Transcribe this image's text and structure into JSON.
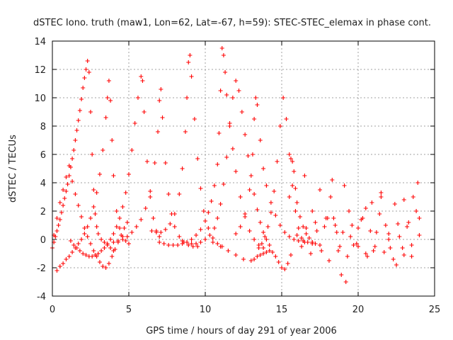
{
  "chart_data": {
    "type": "scatter",
    "title": "dSTEC Iono. truth (maw1, Lon=62, Lat=-67, h=59): STEC-STEC_elemax in phase cont.",
    "xlabel": "GPS time / hours of day 291 of year 2006",
    "ylabel": "dSTEC  / TECUs",
    "xlim": [
      0,
      25
    ],
    "ylim": [
      -4,
      14
    ],
    "x_ticks": [
      0,
      5,
      10,
      15,
      20,
      25
    ],
    "y_ticks": [
      -4,
      -2,
      0,
      2,
      4,
      6,
      8,
      10,
      12,
      14
    ],
    "x_tick_labels": [
      "0",
      "5",
      "10",
      "15",
      "20",
      "25"
    ],
    "y_tick_labels": [
      "-4",
      "-2",
      "0",
      "2",
      "4",
      "6",
      "8",
      "10",
      "12",
      "14"
    ],
    "grid": true,
    "marker": "plus",
    "color": "#ff0000",
    "series": [
      {
        "x": [
          0.0,
          0.1,
          0.2,
          0.3,
          0.4,
          0.5,
          0.6,
          0.7,
          0.8,
          0.9,
          1.0,
          1.1,
          1.2,
          1.3,
          1.4,
          1.5,
          1.6,
          1.7,
          1.8,
          1.9,
          2.0,
          2.1,
          2.2,
          2.3,
          2.4,
          2.5,
          2.6,
          2.7,
          2.8,
          2.9,
          3.0,
          3.2,
          3.4,
          3.6,
          3.8,
          4.0
        ],
        "y": [
          -0.6,
          -0.2,
          0.2,
          0.6,
          1.0,
          1.4,
          1.9,
          2.4,
          2.9,
          3.4,
          3.9,
          4.5,
          5.1,
          5.7,
          6.3,
          7.0,
          7.7,
          8.4,
          9.1,
          9.9,
          10.7,
          11.4,
          12.0,
          12.6,
          11.8,
          9.0,
          6.0,
          3.5,
          1.8,
          0.9,
          0.4,
          0.0,
          -0.2,
          -0.4,
          -0.6,
          -0.8
        ]
      },
      {
        "x": [
          0.3,
          0.5,
          0.7,
          0.9,
          1.1,
          1.3,
          1.5,
          1.7,
          1.9,
          2.1,
          2.3,
          2.5,
          2.7,
          2.9,
          3.1,
          3.3,
          3.5,
          3.6,
          3.7,
          3.8,
          3.9,
          4.0,
          4.2,
          4.4,
          4.6,
          4.8,
          5.0
        ],
        "y": [
          -2.2,
          -1.9,
          -1.7,
          -1.4,
          -1.2,
          -0.9,
          -0.6,
          -0.3,
          0.0,
          0.4,
          0.9,
          1.5,
          2.3,
          3.3,
          4.6,
          6.3,
          8.6,
          10.0,
          11.2,
          9.8,
          7.0,
          4.5,
          2.0,
          0.8,
          0.2,
          -0.1,
          -0.3
        ]
      },
      {
        "x": [
          1.2,
          1.4,
          1.6,
          1.8,
          2.0,
          2.2,
          2.4,
          2.6,
          2.8,
          3.0,
          3.2,
          3.4,
          3.6,
          3.8,
          4.0,
          4.2,
          4.4,
          4.6,
          4.8,
          5.0,
          5.2,
          5.4,
          5.6,
          5.8,
          5.9,
          6.0,
          6.2,
          6.4,
          6.6,
          6.8,
          7.0
        ],
        "y": [
          -0.1,
          -0.4,
          -0.6,
          -0.8,
          -1.0,
          -1.1,
          -1.2,
          -1.2,
          -1.1,
          -1.0,
          -0.8,
          -0.6,
          -0.3,
          0.0,
          0.4,
          0.9,
          1.5,
          2.3,
          3.3,
          4.6,
          6.3,
          8.2,
          10.0,
          11.5,
          11.2,
          9.0,
          5.5,
          3.0,
          1.5,
          0.6,
          0.2
        ]
      },
      {
        "x": [
          4.0,
          4.3,
          4.6,
          4.9,
          5.2,
          5.5,
          5.8,
          6.1,
          6.4,
          6.7,
          6.9,
          7.0,
          7.1,
          7.2,
          7.4,
          7.6,
          7.8,
          8.0,
          8.3,
          8.6,
          8.9,
          9.2,
          9.5
        ],
        "y": [
          -0.2,
          -0.1,
          0.0,
          0.2,
          0.5,
          0.9,
          1.4,
          2.2,
          3.4,
          5.4,
          7.6,
          9.8,
          10.6,
          8.6,
          5.4,
          3.2,
          1.8,
          0.9,
          0.2,
          -0.2,
          -0.4,
          -0.5,
          -0.5
        ]
      },
      {
        "x": [
          6.5,
          6.8,
          7.1,
          7.4,
          7.7,
          8.0,
          8.3,
          8.5,
          8.7,
          8.8,
          8.9,
          9.0,
          9.1,
          9.3,
          9.5,
          9.7,
          9.9,
          10.2,
          10.5,
          10.8,
          11.1
        ],
        "y": [
          0.6,
          0.5,
          0.5,
          0.7,
          1.1,
          1.8,
          3.2,
          5.0,
          7.6,
          10.0,
          12.5,
          13.0,
          11.5,
          8.5,
          5.7,
          3.6,
          2.0,
          0.8,
          0.1,
          -0.3,
          -0.5
        ]
      },
      {
        "x": [
          7.0,
          7.3,
          7.6,
          7.9,
          8.2,
          8.5,
          8.8,
          9.1,
          9.4,
          9.7,
          10.0,
          10.2,
          10.4,
          10.6,
          10.8,
          10.9,
          11.0,
          11.1,
          11.2,
          11.3,
          11.4,
          11.6,
          11.8,
          12.0,
          12.3,
          12.6,
          12.9,
          13.2,
          13.5,
          13.8
        ],
        "y": [
          -0.2,
          -0.3,
          -0.4,
          -0.4,
          -0.4,
          -0.3,
          -0.2,
          0.0,
          0.3,
          0.7,
          1.3,
          1.9,
          2.7,
          3.8,
          5.3,
          7.5,
          10.5,
          13.5,
          13.0,
          11.8,
          10.2,
          8.2,
          6.4,
          4.8,
          3.0,
          1.6,
          0.6,
          0.0,
          -0.4,
          -0.6
        ]
      },
      {
        "x": [
          8.5,
          8.8,
          9.1,
          9.4,
          9.7,
          10.0,
          10.3,
          10.6,
          10.8,
          11.0,
          11.2,
          11.4,
          11.6,
          11.8,
          12.0,
          12.2,
          12.4,
          12.6,
          12.8,
          13.0,
          13.2,
          13.4,
          13.6,
          13.8,
          14.0,
          14.2
        ],
        "y": [
          -0.1,
          -0.2,
          -0.3,
          -0.3,
          -0.2,
          0.0,
          0.3,
          0.8,
          1.5,
          2.5,
          3.9,
          5.8,
          8.0,
          10.0,
          11.2,
          10.5,
          9.0,
          7.4,
          5.9,
          4.5,
          3.2,
          2.1,
          1.2,
          0.5,
          0.0,
          -0.4
        ]
      },
      {
        "x": [
          10.0,
          10.5,
          11.0,
          11.5,
          12.0,
          12.5,
          13.0,
          13.2,
          13.4,
          13.6,
          13.8,
          14.0,
          14.2,
          14.4,
          14.6,
          14.8,
          15.0,
          15.2,
          15.4,
          15.6
        ],
        "y": [
          0.0,
          -0.2,
          -0.5,
          -0.8,
          -1.1,
          -1.4,
          -1.5,
          -1.4,
          -1.2,
          -1.1,
          -1.0,
          -0.9,
          -0.8,
          -0.9,
          -1.2,
          -1.6,
          -2.0,
          -2.1,
          -1.7,
          -1.1
        ]
      },
      {
        "x": [
          12.0,
          12.3,
          12.6,
          12.9,
          13.1,
          13.2,
          13.3,
          13.4,
          13.6,
          13.8,
          14.0,
          14.3,
          14.6,
          14.9,
          15.2,
          15.5,
          15.8,
          16.1,
          16.4,
          16.7,
          17.0
        ],
        "y": [
          0.4,
          0.9,
          1.8,
          3.5,
          6.0,
          8.5,
          10.0,
          9.5,
          7.0,
          5.0,
          3.8,
          2.6,
          1.7,
          1.0,
          0.5,
          0.2,
          0.0,
          -0.1,
          -0.1,
          -0.2,
          -0.2
        ]
      },
      {
        "x": [
          13.5,
          13.7,
          13.9,
          14.1,
          14.3,
          14.5,
          14.7,
          14.9,
          15.1,
          15.3,
          15.5,
          15.7,
          15.9,
          16.1,
          16.3,
          16.5
        ],
        "y": [
          -0.6,
          -0.3,
          0.2,
          0.9,
          1.9,
          3.4,
          5.5,
          8.0,
          10.0,
          8.5,
          6.0,
          3.8,
          2.0,
          0.8,
          0.1,
          -0.2
        ]
      },
      {
        "x": [
          15.5,
          15.6,
          15.7,
          15.8,
          15.9,
          16.0,
          16.2,
          16.4,
          16.6,
          16.8,
          17.0,
          17.2
        ],
        "y": [
          3.0,
          5.7,
          5.5,
          4.8,
          3.6,
          2.6,
          1.6,
          0.9,
          0.4,
          0.1,
          -0.2,
          -0.3
        ]
      },
      {
        "x": [
          16.0,
          16.3,
          16.6,
          16.9,
          17.2,
          17.5,
          17.8,
          18.1,
          18.4,
          18.7,
          19.0,
          19.3,
          19.6,
          19.9,
          20.2,
          20.5,
          20.8,
          21.1,
          21.4,
          21.7,
          22.0,
          22.3,
          22.6,
          22.9,
          23.2,
          23.5,
          23.8,
          24.0
        ],
        "y": [
          0.3,
          -0.5,
          0.8,
          -1.0,
          1.2,
          -0.4,
          0.9,
          -1.5,
          1.5,
          -0.8,
          0.5,
          -1.2,
          1.0,
          -0.3,
          1.4,
          -1.0,
          0.6,
          -0.5,
          1.8,
          -0.9,
          0.4,
          -1.4,
          1.1,
          -0.6,
          0.9,
          -1.2,
          2.0,
          0.3
        ]
      },
      {
        "x": [
          17.0,
          17.3,
          17.6,
          17.9,
          18.2,
          18.5,
          18.8,
          19.1,
          19.4,
          19.7,
          20.0,
          20.3,
          20.6,
          20.9,
          21.2,
          21.5,
          21.8,
          22.1,
          22.4,
          22.7,
          23.0,
          23.3,
          23.6,
          23.9
        ],
        "y": [
          -0.3,
          0.6,
          -0.8,
          1.5,
          3.0,
          1.0,
          -0.5,
          3.8,
          2.0,
          -0.4,
          0.8,
          1.5,
          -1.2,
          2.6,
          0.5,
          3.3,
          1.0,
          -0.6,
          2.5,
          0.2,
          -1.1,
          1.2,
          3.0,
          4.0
        ]
      },
      {
        "x": [
          16.5,
          17.0,
          17.5,
          18.0,
          18.3,
          18.6,
          18.9,
          19.2,
          19.5,
          20.0,
          20.5,
          21.0,
          21.5,
          22.0,
          22.5,
          23.0,
          23.5,
          24.0
        ],
        "y": [
          4.5,
          2.0,
          3.5,
          1.5,
          4.2,
          0.5,
          -2.5,
          -3.0,
          0.2,
          -0.5,
          2.2,
          -0.8,
          3.0,
          0.0,
          -1.8,
          2.8,
          -0.4,
          1.5
        ]
      },
      {
        "x": [
          0.1,
          0.3,
          0.5,
          0.7,
          0.9,
          1.1,
          1.3,
          1.5,
          1.7,
          1.9,
          2.1,
          2.3,
          2.5,
          2.7,
          2.9,
          3.1,
          3.3,
          3.5,
          3.7,
          3.9,
          4.1,
          4.3,
          4.5,
          4.7,
          4.9
        ],
        "y": [
          0.3,
          1.5,
          2.6,
          3.5,
          4.4,
          5.2,
          4.1,
          3.2,
          2.4,
          1.6,
          0.8,
          0.2,
          -0.3,
          -0.8,
          -1.2,
          -1.6,
          -1.9,
          -2.0,
          -1.7,
          -1.2,
          -0.7,
          -0.2,
          0.3,
          0.8,
          1.2
        ]
      }
    ]
  }
}
